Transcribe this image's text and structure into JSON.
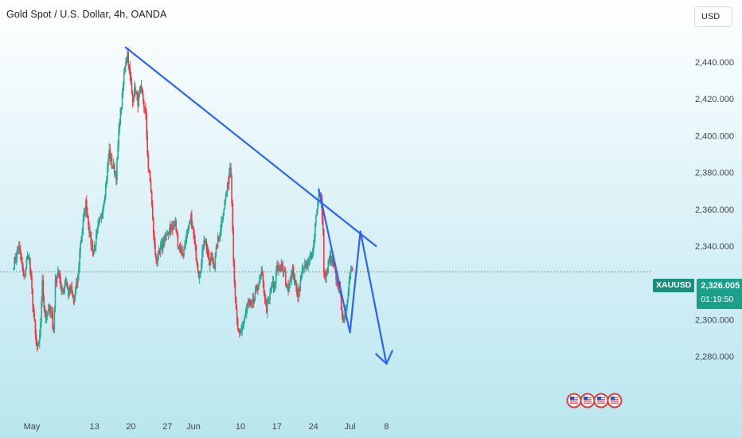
{
  "header": {
    "title": "Gold Spot / U.S. Dollar, 4h, OANDA",
    "currency": "USD"
  },
  "price_tag": {
    "symbol": "XAUUSD",
    "price": "2,326.005",
    "countdown": "01:19:50"
  },
  "colors": {
    "up": "#22ab94",
    "down": "#f23645",
    "drawing": "#2962ff",
    "price_line": "#1a9c85"
  },
  "events": {
    "flag_count": 4,
    "icon": "us-flag-icon"
  },
  "chart_data": {
    "type": "candlestick",
    "title": "Gold Spot / U.S. Dollar, 4h, OANDA",
    "ylim": [
      2270,
      2450
    ],
    "y_ticks": [
      "2,440.000",
      "2,420.000",
      "2,400.000",
      "2,380.000",
      "2,360.000",
      "2,340.000",
      "2,300.000",
      "2,280.000"
    ],
    "y_tick_values": [
      2440,
      2420,
      2400,
      2380,
      2360,
      2340,
      2300,
      2280
    ],
    "x_ticks": [
      {
        "label": "May",
        "day": 1
      },
      {
        "label": "13",
        "day": 13
      },
      {
        "label": "20",
        "day": 20
      },
      {
        "label": "27",
        "day": 27
      },
      {
        "label": "Jun",
        "day": 32
      },
      {
        "label": "10",
        "day": 41
      },
      {
        "label": "17",
        "day": 48
      },
      {
        "label": "24",
        "day": 55
      },
      {
        "label": "Jul",
        "day": 62
      },
      {
        "label": "8",
        "day": 69
      }
    ],
    "x_unit": "days since Apr 30",
    "last_price": 2326.005,
    "price_anchors": [
      [
        -2.5,
        2330
      ],
      [
        -1.5,
        2340
      ],
      [
        -0.5,
        2322
      ],
      [
        0,
        2332
      ],
      [
        0.4,
        2336
      ],
      [
        1.3,
        2305
      ],
      [
        1.8,
        2286
      ],
      [
        2.3,
        2284
      ],
      [
        2.8,
        2305
      ],
      [
        3.0,
        2322
      ],
      [
        3.3,
        2308
      ],
      [
        3.8,
        2300
      ],
      [
        4.3,
        2306
      ],
      [
        4.8,
        2305
      ],
      [
        5.1,
        2290
      ],
      [
        5.5,
        2320
      ],
      [
        6.0,
        2327
      ],
      [
        6.5,
        2318
      ],
      [
        7.0,
        2316
      ],
      [
        7.5,
        2322
      ],
      [
        8.0,
        2314
      ],
      [
        8.5,
        2316
      ],
      [
        9.0,
        2310
      ],
      [
        9.8,
        2322
      ],
      [
        10.3,
        2342
      ],
      [
        10.8,
        2352
      ],
      [
        11.3,
        2364
      ],
      [
        11.8,
        2354
      ],
      [
        12.3,
        2342
      ],
      [
        12.8,
        2337
      ],
      [
        13.3,
        2344
      ],
      [
        13.8,
        2351
      ],
      [
        14.3,
        2356
      ],
      [
        14.8,
        2365
      ],
      [
        15.3,
        2376
      ],
      [
        15.8,
        2392
      ],
      [
        16.3,
        2384
      ],
      [
        16.8,
        2382
      ],
      [
        17.2,
        2378
      ],
      [
        17.5,
        2394
      ],
      [
        17.8,
        2408
      ],
      [
        18.3,
        2420
      ],
      [
        18.8,
        2438
      ],
      [
        19.3,
        2446
      ],
      [
        19.8,
        2432
      ],
      [
        20.3,
        2420
      ],
      [
        20.8,
        2426
      ],
      [
        21.3,
        2418
      ],
      [
        21.8,
        2425
      ],
      [
        22.3,
        2420
      ],
      [
        22.8,
        2412
      ],
      [
        23.3,
        2383
      ],
      [
        23.8,
        2372
      ],
      [
        24.2,
        2352
      ],
      [
        24.6,
        2336
      ],
      [
        25.0,
        2332
      ],
      [
        25.5,
        2336
      ],
      [
        26.0,
        2340
      ],
      [
        26.5,
        2346
      ],
      [
        27.0,
        2344
      ],
      [
        27.5,
        2352
      ],
      [
        28.0,
        2349
      ],
      [
        28.5,
        2352
      ],
      [
        29.0,
        2342
      ],
      [
        29.5,
        2338
      ],
      [
        30.0,
        2336
      ],
      [
        30.5,
        2344
      ],
      [
        31.0,
        2348
      ],
      [
        31.5,
        2355
      ],
      [
        32.0,
        2346
      ],
      [
        32.5,
        2335
      ],
      [
        33.0,
        2325
      ],
      [
        33.5,
        2330
      ],
      [
        34.0,
        2345
      ],
      [
        34.5,
        2340
      ],
      [
        35.0,
        2330
      ],
      [
        35.5,
        2334
      ],
      [
        36.0,
        2329
      ],
      [
        36.5,
        2341
      ],
      [
        37.0,
        2347
      ],
      [
        37.5,
        2356
      ],
      [
        38.0,
        2364
      ],
      [
        38.5,
        2372
      ],
      [
        39.1,
        2386
      ],
      [
        39.4,
        2360
      ],
      [
        39.6,
        2338
      ],
      [
        40.0,
        2310
      ],
      [
        40.3,
        2300
      ],
      [
        40.6,
        2292
      ],
      [
        40.9,
        2290
      ],
      [
        41.5,
        2298
      ],
      [
        42.0,
        2304
      ],
      [
        42.5,
        2310
      ],
      [
        43.0,
        2306
      ],
      [
        43.5,
        2310
      ],
      [
        44.0,
        2316
      ],
      [
        44.5,
        2320
      ],
      [
        45.0,
        2325
      ],
      [
        45.5,
        2316
      ],
      [
        46.0,
        2306
      ],
      [
        46.5,
        2310
      ],
      [
        47.0,
        2320
      ],
      [
        47.5,
        2316
      ],
      [
        48.0,
        2330
      ],
      [
        48.5,
        2328
      ],
      [
        49.0,
        2328
      ],
      [
        49.5,
        2324
      ],
      [
        50.0,
        2316
      ],
      [
        50.5,
        2322
      ],
      [
        51.0,
        2327
      ],
      [
        51.5,
        2319
      ],
      [
        52.0,
        2314
      ],
      [
        52.5,
        2320
      ],
      [
        53.0,
        2330
      ],
      [
        53.5,
        2328
      ],
      [
        54.0,
        2330
      ],
      [
        54.5,
        2334
      ],
      [
        55.0,
        2340
      ],
      [
        55.5,
        2358
      ],
      [
        56.0,
        2367
      ],
      [
        56.5,
        2364
      ],
      [
        56.8,
        2352
      ],
      [
        57.0,
        2326
      ],
      [
        57.3,
        2322
      ],
      [
        57.8,
        2330
      ],
      [
        58.2,
        2334
      ],
      [
        58.6,
        2330
      ],
      [
        59.0,
        2327
      ],
      [
        59.5,
        2321
      ],
      [
        60.0,
        2316
      ],
      [
        60.5,
        2304
      ],
      [
        60.8,
        2297
      ],
      [
        61.2,
        2304
      ],
      [
        61.7,
        2318
      ],
      [
        62.2,
        2330
      ],
      [
        62.6,
        2326
      ]
    ],
    "drawings": {
      "trendline": [
        [
          19.0,
          2448
        ],
        [
          67.0,
          2340
        ]
      ],
      "zigzag": [
        [
          56.0,
          2371
        ],
        [
          62.0,
          2293
        ],
        [
          64.0,
          2348
        ],
        [
          69.0,
          2276
        ]
      ]
    }
  }
}
